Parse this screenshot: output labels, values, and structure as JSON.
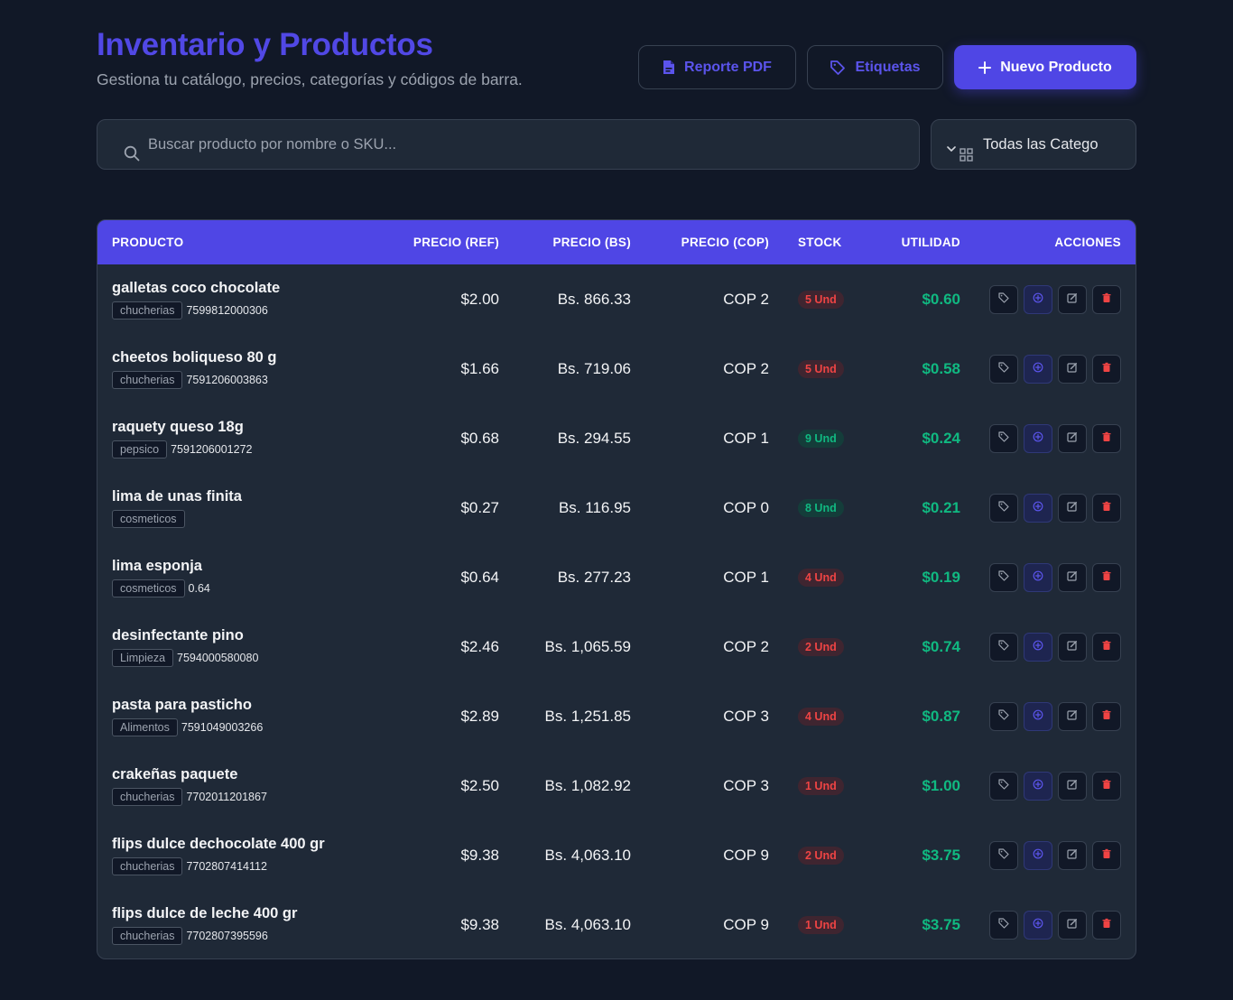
{
  "header": {
    "title": "Inventario y Productos",
    "subtitle": "Gestiona tu catálogo, precios, categorías y códigos de barra.",
    "buttons": {
      "pdf": "Reporte PDF",
      "labels": "Etiquetas",
      "new": "Nuevo Producto"
    }
  },
  "filters": {
    "search_placeholder": "Buscar producto por nombre o SKU...",
    "category_value": "Todas las Catego"
  },
  "table": {
    "columns": {
      "product": "PRODUCTO",
      "price_ref": "PRECIO (REF)",
      "price_bs": "PRECIO (BS)",
      "price_cop": "PRECIO (COP)",
      "stock": "STOCK",
      "utility": "UTILIDAD",
      "actions": "ACCIONES"
    },
    "rows": [
      {
        "name": "galletas coco chocolate",
        "category": "chucherias",
        "sku": "7599812000306",
        "ref": "$2.00",
        "bs": "Bs. 866.33",
        "cop": "COP 2",
        "stock": "5 Und",
        "stock_level": "low",
        "utility": "$0.60"
      },
      {
        "name": "cheetos boliqueso 80 g",
        "category": "chucherias",
        "sku": "7591206003863",
        "ref": "$1.66",
        "bs": "Bs. 719.06",
        "cop": "COP 2",
        "stock": "5 Und",
        "stock_level": "low",
        "utility": "$0.58"
      },
      {
        "name": "raquety queso 18g",
        "category": "pepsico",
        "sku": "7591206001272",
        "ref": "$0.68",
        "bs": "Bs. 294.55",
        "cop": "COP 1",
        "stock": "9 Und",
        "stock_level": "ok",
        "utility": "$0.24"
      },
      {
        "name": "lima de unas finita",
        "category": "cosmeticos",
        "sku": "",
        "ref": "$0.27",
        "bs": "Bs. 116.95",
        "cop": "COP 0",
        "stock": "8 Und",
        "stock_level": "ok",
        "utility": "$0.21"
      },
      {
        "name": "lima esponja",
        "category": "cosmeticos",
        "sku": "0.64",
        "ref": "$0.64",
        "bs": "Bs. 277.23",
        "cop": "COP 1",
        "stock": "4 Und",
        "stock_level": "low",
        "utility": "$0.19"
      },
      {
        "name": "desinfectante pino",
        "category": "Limpieza",
        "sku": "7594000580080",
        "ref": "$2.46",
        "bs": "Bs. 1,065.59",
        "cop": "COP 2",
        "stock": "2 Und",
        "stock_level": "low",
        "utility": "$0.74"
      },
      {
        "name": "pasta para pasticho",
        "category": "Alimentos",
        "sku": "7591049003266",
        "ref": "$2.89",
        "bs": "Bs. 1,251.85",
        "cop": "COP 3",
        "stock": "4 Und",
        "stock_level": "low",
        "utility": "$0.87"
      },
      {
        "name": "crakeñas paquete",
        "category": "chucherias",
        "sku": "7702011201867",
        "ref": "$2.50",
        "bs": "Bs. 1,082.92",
        "cop": "COP 3",
        "stock": "1 Und",
        "stock_level": "low",
        "utility": "$1.00"
      },
      {
        "name": "flips dulce dechocolate 400 gr",
        "category": "chucherias",
        "sku": "7702807414112",
        "ref": "$9.38",
        "bs": "Bs. 4,063.10",
        "cop": "COP 9",
        "stock": "2 Und",
        "stock_level": "low",
        "utility": "$3.75"
      },
      {
        "name": "flips dulce de leche 400 gr",
        "category": "chucherias",
        "sku": "7702807395596",
        "ref": "$9.38",
        "bs": "Bs. 4,063.10",
        "cop": "COP 9",
        "stock": "1 Und",
        "stock_level": "low",
        "utility": "$3.75"
      }
    ]
  },
  "icons": {
    "pdf": "file-pdf-icon",
    "labels": "tag-icon",
    "new": "plus-icon",
    "search": "search-icon",
    "category": "grid-icon",
    "row_actions": [
      "tag-icon",
      "plus-circle-icon",
      "edit-icon",
      "trash-icon"
    ]
  },
  "colors": {
    "accent": "#4f46e5",
    "background": "#111827",
    "surface": "#1f2937",
    "success": "#10b981",
    "danger": "#ef4444"
  }
}
